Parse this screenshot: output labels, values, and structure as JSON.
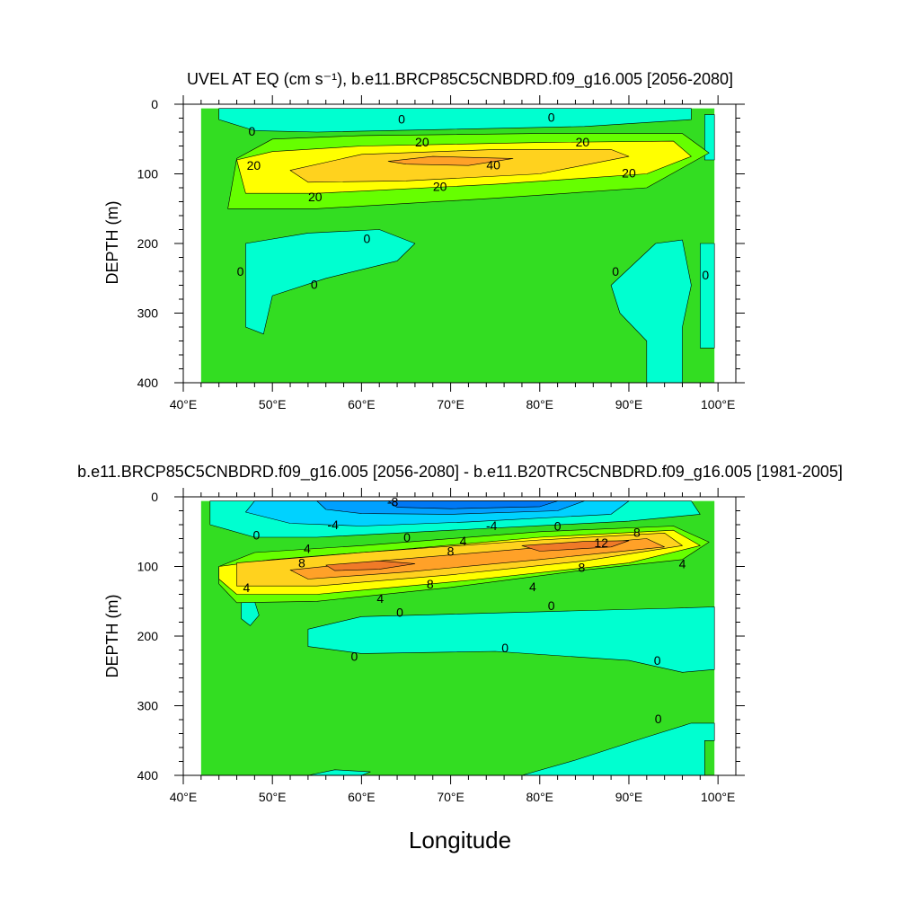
{
  "chart_data": [
    {
      "type": "contour",
      "title": "UVEL AT EQ (cm s⁻¹), b.e11.BRCP85C5CNBDRD.f09_g16.005 [2056-2080]",
      "xlabel": "",
      "ylabel": "DEPTH (m)",
      "xlim": [
        40,
        102
      ],
      "ylim": [
        400,
        0
      ],
      "x_ticks": [
        40,
        50,
        60,
        70,
        80,
        90,
        100
      ],
      "x_tick_labels": [
        "40°E",
        "50°E",
        "60°E",
        "70°E",
        "80°E",
        "90°E",
        "100°E"
      ],
      "y_ticks": [
        0,
        100,
        200,
        300,
        400
      ],
      "y_tick_labels": [
        "0",
        "100",
        "200",
        "300",
        "400"
      ],
      "data_extent": {
        "x": [
          42,
          99.6
        ],
        "depth": [
          6,
          400
        ]
      },
      "colors": {
        "land": "#ffffff",
        "neg": "#00ffd0",
        "zero": "#33dd22",
        "l10": "#66ff00",
        "l20": "#ffff00",
        "l30": "#ffd21e",
        "l40": "#ffa128"
      },
      "regions": [
        {
          "level": "neg",
          "points": [
            [
              44,
              6
            ],
            [
              66,
              6
            ],
            [
              82,
              6
            ],
            [
              97,
              6
            ],
            [
              97,
              22
            ],
            [
              85,
              32
            ],
            [
              70,
              36
            ],
            [
              55,
              40
            ],
            [
              48,
              38
            ],
            [
              44,
              22
            ]
          ]
        },
        {
          "level": "neg",
          "points": [
            [
              98.5,
              15
            ],
            [
              99.6,
              15
            ],
            [
              99.6,
              80
            ],
            [
              98.5,
              80
            ]
          ]
        },
        {
          "level": "neg",
          "points": [
            [
              47,
              200
            ],
            [
              54,
              185
            ],
            [
              62,
              180
            ],
            [
              66,
              200
            ],
            [
              64,
              225
            ],
            [
              56,
              250
            ],
            [
              50,
              275
            ],
            [
              49,
              330
            ],
            [
              47,
              320
            ]
          ]
        },
        {
          "level": "neg",
          "points": [
            [
              88,
              260
            ],
            [
              93,
              200
            ],
            [
              96,
              195
            ],
            [
              97,
              260
            ],
            [
              96,
              320
            ],
            [
              96,
              400
            ],
            [
              92,
              400
            ],
            [
              92,
              340
            ],
            [
              89,
              300
            ]
          ]
        },
        {
          "level": "neg",
          "points": [
            [
              98,
              200
            ],
            [
              99.6,
              200
            ],
            [
              99.6,
              350
            ],
            [
              98,
              350
            ]
          ]
        },
        {
          "level": "l10",
          "points": [
            [
              46,
              78
            ],
            [
              50,
              50
            ],
            [
              60,
              45
            ],
            [
              80,
              42
            ],
            [
              96,
              42
            ],
            [
              99,
              70
            ],
            [
              92,
              120
            ],
            [
              75,
              135
            ],
            [
              55,
              150
            ],
            [
              45,
              150
            ]
          ]
        },
        {
          "level": "l20",
          "points": [
            [
              46,
              80
            ],
            [
              50,
              68
            ],
            [
              60,
              60
            ],
            [
              80,
              55
            ],
            [
              95,
              53
            ],
            [
              97,
              75
            ],
            [
              92,
              100
            ],
            [
              75,
              115
            ],
            [
              55,
              128
            ],
            [
              47,
              128
            ]
          ]
        },
        {
          "level": "l30",
          "points": [
            [
              52,
              95
            ],
            [
              60,
              72
            ],
            [
              75,
              65
            ],
            [
              88,
              65
            ],
            [
              90,
              75
            ],
            [
              80,
              100
            ],
            [
              65,
              110
            ],
            [
              54,
              112
            ]
          ]
        },
        {
          "level": "l40",
          "points": [
            [
              63,
              82
            ],
            [
              68,
              75
            ],
            [
              77,
              78
            ],
            [
              72,
              88
            ],
            [
              65,
              86
            ]
          ]
        }
      ],
      "contour_labels": [
        {
          "x": 64.5,
          "depth": 21,
          "text": "0"
        },
        {
          "x": 81.3,
          "depth": 19,
          "text": "0"
        },
        {
          "x": 47.7,
          "depth": 39,
          "text": "0"
        },
        {
          "x": 66.8,
          "depth": 54,
          "text": "20"
        },
        {
          "x": 84.8,
          "depth": 54,
          "text": "20"
        },
        {
          "x": 47.9,
          "depth": 88,
          "text": "20"
        },
        {
          "x": 74.8,
          "depth": 87,
          "text": "40"
        },
        {
          "x": 90.0,
          "depth": 99,
          "text": "20"
        },
        {
          "x": 68.8,
          "depth": 118,
          "text": "20"
        },
        {
          "x": 54.8,
          "depth": 133,
          "text": "20"
        },
        {
          "x": 60.6,
          "depth": 193,
          "text": "0"
        },
        {
          "x": 46.4,
          "depth": 240,
          "text": "0"
        },
        {
          "x": 54.7,
          "depth": 259,
          "text": "0"
        },
        {
          "x": 88.5,
          "depth": 240,
          "text": "0"
        },
        {
          "x": 98.6,
          "depth": 245,
          "text": "0"
        }
      ]
    },
    {
      "type": "contour",
      "title": "b.e11.BRCP85C5CNBDRD.f09_g16.005 [2056-2080] - b.e11.B20TRC5CNBDRD.f09_g16.005 [1981-2005]",
      "xlabel": "Longitude",
      "ylabel": "DEPTH (m)",
      "xlim": [
        40,
        102
      ],
      "ylim": [
        400,
        0
      ],
      "x_ticks": [
        40,
        50,
        60,
        70,
        80,
        90,
        100
      ],
      "x_tick_labels": [
        "40°E",
        "50°E",
        "60°E",
        "70°E",
        "80°E",
        "90°E",
        "100°E"
      ],
      "y_ticks": [
        0,
        100,
        200,
        300,
        400
      ],
      "y_tick_labels": [
        "0",
        "100",
        "200",
        "300",
        "400"
      ],
      "data_extent": {
        "x": [
          42,
          99.6
        ],
        "depth": [
          6,
          400
        ]
      },
      "colors": {
        "land": "#ffffff",
        "zero": "#33dd22",
        "n1": "#00ffd0",
        "n2": "#00d2ff",
        "n3": "#00a0ff",
        "n4": "#0078f5",
        "p1": "#66ff00",
        "p2": "#ffff00",
        "p3": "#ffd21e",
        "p4": "#ffa128",
        "p5": "#f07a28"
      },
      "regions": [
        {
          "level": "n1",
          "points": [
            [
              43,
              6
            ],
            [
              97,
              6
            ],
            [
              98,
              25
            ],
            [
              90,
              35
            ],
            [
              70,
              48
            ],
            [
              55,
              58
            ],
            [
              48,
              58
            ],
            [
              43,
              40
            ]
          ]
        },
        {
          "level": "n2",
          "points": [
            [
              48,
              6
            ],
            [
              90,
              6
            ],
            [
              88,
              25
            ],
            [
              72,
              36
            ],
            [
              60,
              42
            ],
            [
              52,
              38
            ],
            [
              47,
              22
            ]
          ]
        },
        {
          "level": "n3",
          "points": [
            [
              55,
              6
            ],
            [
              85,
              6
            ],
            [
              82,
              20
            ],
            [
              70,
              25
            ],
            [
              60,
              24
            ],
            [
              56,
              18
            ]
          ]
        },
        {
          "level": "n4",
          "points": [
            [
              63,
              6
            ],
            [
              82,
              6
            ],
            [
              80,
              14
            ],
            [
              70,
              17
            ],
            [
              64,
              15
            ]
          ]
        },
        {
          "level": "n1",
          "points": [
            [
              54,
              190
            ],
            [
              60,
              172
            ],
            [
              80,
              165
            ],
            [
              95,
              160
            ],
            [
              99.6,
              158
            ],
            [
              99.6,
              248
            ],
            [
              96,
              252
            ],
            [
              90,
              235
            ],
            [
              75,
              222
            ],
            [
              60,
              225
            ],
            [
              54,
              215
            ]
          ]
        },
        {
          "level": "n1",
          "points": [
            [
              46.5,
              152
            ],
            [
              48,
              150
            ],
            [
              48.5,
              170
            ],
            [
              47.5,
              185
            ],
            [
              46.5,
              175
            ]
          ]
        },
        {
          "level": "n1",
          "points": [
            [
              78,
              400
            ],
            [
              84,
              378
            ],
            [
              92,
              345
            ],
            [
              97,
              325
            ],
            [
              99.6,
              325
            ],
            [
              99.6,
              350
            ],
            [
              98.5,
              350
            ],
            [
              98.5,
              400
            ]
          ]
        },
        {
          "level": "n1",
          "points": [
            [
              54,
              400
            ],
            [
              57,
              392
            ],
            [
              61,
              395
            ],
            [
              60,
              400
            ]
          ]
        },
        {
          "level": "p1",
          "points": [
            [
              44,
              100
            ],
            [
              48,
              80
            ],
            [
              60,
              70
            ],
            [
              80,
              50
            ],
            [
              95,
              42
            ],
            [
              99,
              65
            ],
            [
              96,
              90
            ],
            [
              85,
              105
            ],
            [
              70,
              130
            ],
            [
              55,
              150
            ],
            [
              46,
              152
            ],
            [
              44,
              125
            ]
          ]
        },
        {
          "level": "p2",
          "points": [
            [
              44,
              100
            ],
            [
              50,
              90
            ],
            [
              65,
              75
            ],
            [
              80,
              58
            ],
            [
              95,
              48
            ],
            [
              98,
              70
            ],
            [
              90,
              95
            ],
            [
              72,
              120
            ],
            [
              55,
              140
            ],
            [
              46,
              140
            ],
            [
              44,
              118
            ]
          ]
        },
        {
          "level": "p3",
          "points": [
            [
              46,
              95
            ],
            [
              60,
              80
            ],
            [
              80,
              62
            ],
            [
              94,
              52
            ],
            [
              96,
              70
            ],
            [
              85,
              92
            ],
            [
              70,
              112
            ],
            [
              55,
              128
            ],
            [
              46,
              128
            ]
          ]
        },
        {
          "level": "p4",
          "points": [
            [
              52,
              105
            ],
            [
              62,
              92
            ],
            [
              78,
              75
            ],
            [
              92,
              60
            ],
            [
              94,
              72
            ],
            [
              80,
              90
            ],
            [
              65,
              108
            ],
            [
              54,
              118
            ]
          ]
        },
        {
          "level": "p5",
          "points": [
            [
              56,
              98
            ],
            [
              62,
              92
            ],
            [
              66,
              96
            ],
            [
              62,
              104
            ],
            [
              57,
              106
            ]
          ]
        },
        {
          "level": "p5",
          "points": [
            [
              78,
              70
            ],
            [
              85,
              64
            ],
            [
              90,
              63
            ],
            [
              88,
              72
            ],
            [
              80,
              78
            ]
          ]
        }
      ],
      "contour_labels": [
        {
          "x": 63.5,
          "depth": 7,
          "text": "-8"
        },
        {
          "x": 56.8,
          "depth": 40,
          "text": "-4"
        },
        {
          "x": 74.6,
          "depth": 41,
          "text": "-4"
        },
        {
          "x": 48.2,
          "depth": 55,
          "text": "0"
        },
        {
          "x": 65.1,
          "depth": 58,
          "text": "0"
        },
        {
          "x": 82.0,
          "depth": 42,
          "text": "0"
        },
        {
          "x": 71.4,
          "depth": 63,
          "text": "4"
        },
        {
          "x": 53.9,
          "depth": 74,
          "text": "4"
        },
        {
          "x": 70.0,
          "depth": 78,
          "text": "8"
        },
        {
          "x": 90.9,
          "depth": 51,
          "text": "8"
        },
        {
          "x": 86.9,
          "depth": 66,
          "text": "12"
        },
        {
          "x": 53.3,
          "depth": 95,
          "text": "8"
        },
        {
          "x": 84.7,
          "depth": 101,
          "text": "8"
        },
        {
          "x": 96.0,
          "depth": 96,
          "text": "4"
        },
        {
          "x": 47.1,
          "depth": 130,
          "text": "4"
        },
        {
          "x": 67.7,
          "depth": 125,
          "text": "8"
        },
        {
          "x": 79.2,
          "depth": 129,
          "text": "4"
        },
        {
          "x": 62.1,
          "depth": 146,
          "text": "4"
        },
        {
          "x": 64.3,
          "depth": 166,
          "text": "0"
        },
        {
          "x": 81.3,
          "depth": 156,
          "text": "0"
        },
        {
          "x": 59.2,
          "depth": 229,
          "text": "0"
        },
        {
          "x": 76.1,
          "depth": 217,
          "text": "0"
        },
        {
          "x": 93.2,
          "depth": 235,
          "text": "0"
        },
        {
          "x": 93.3,
          "depth": 319,
          "text": "0"
        }
      ]
    }
  ]
}
